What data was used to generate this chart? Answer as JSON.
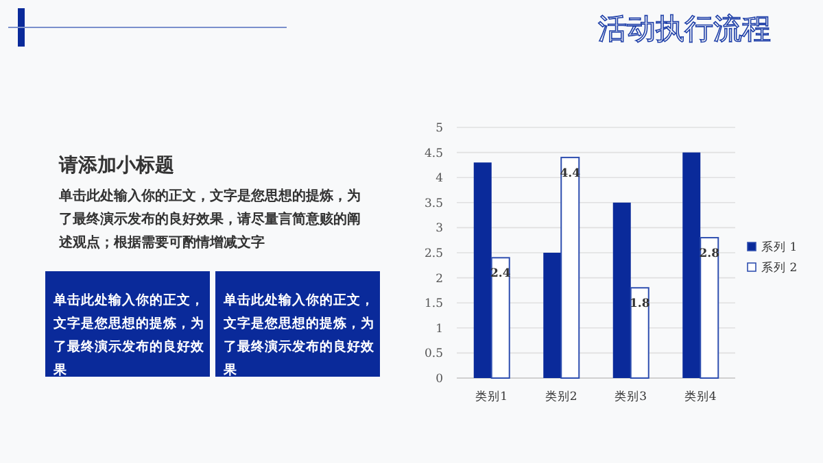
{
  "chart_data": {
    "type": "bar",
    "title": "活动执行流程",
    "subtitle": "请添加小标题",
    "annotations": [
      "单击此处输入你的正文，文字是您思想的提炼，为了最终演示发布的良好效果，请尽量言简意赅的阐述观点；根据需要可酌情增减文字",
      "单击此处输入你的正文，文字是您思想的提炼，为了最终演示发布的良好效果",
      "单击此处输入你的正文，文字是您思想的提炼，为了最终演示发布的良好效果"
    ],
    "categories": [
      "类别1",
      "类别2",
      "类别3",
      "类别4"
    ],
    "series": [
      {
        "name": "系列 1",
        "color": "#0a2a9a",
        "values": [
          4.3,
          2.5,
          3.5,
          4.5
        ]
      },
      {
        "name": "系列 2",
        "color": "#ffffff",
        "values": [
          2.4,
          4.4,
          1.8,
          2.8
        ],
        "value_labels": [
          "2.4",
          "4.4",
          "1.8",
          "2.8"
        ]
      }
    ],
    "ylim": [
      0,
      5
    ],
    "yticks": [
      0,
      0.5,
      1,
      1.5,
      2,
      2.5,
      3,
      3.5,
      4,
      4.5,
      5
    ],
    "grid": "y",
    "legend": "right"
  }
}
